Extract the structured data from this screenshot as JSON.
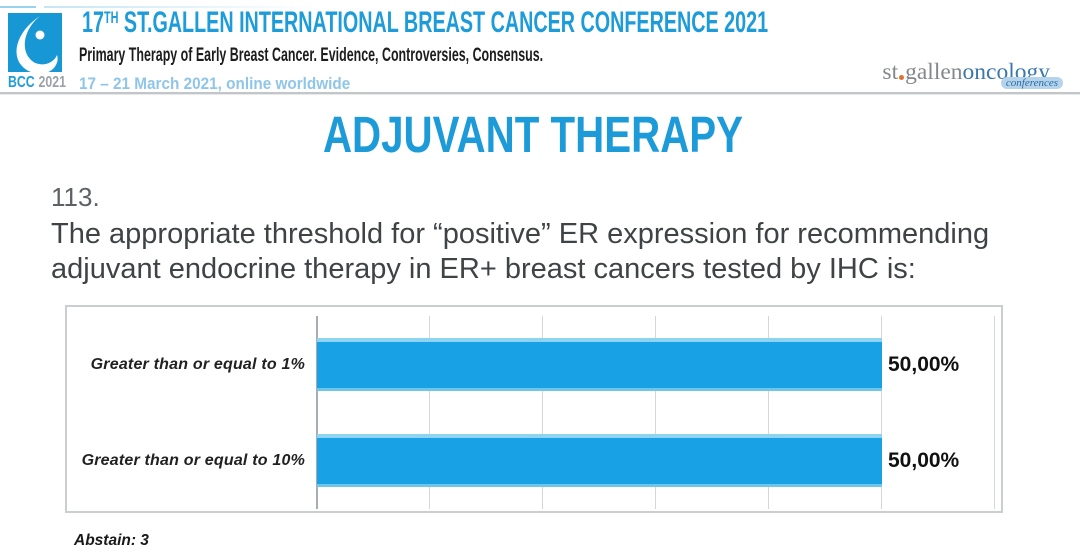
{
  "header": {
    "conference_title": {
      "prefix": "17",
      "superscript": "TH",
      "rest": " ST.GALLEN INTERNATIONAL BREAST CANCER CONFERENCE 2021"
    },
    "subtitle": "Primary Therapy of Early Breast Cancer. Evidence, Controversies, Consensus.",
    "date_line": "17 – 21 March 2021, online worldwide",
    "badge": {
      "acronym": "BCC",
      "year": "2021"
    },
    "logo_right": {
      "part1": "st",
      "part2": "gallen",
      "part3": "oncology",
      "part4": "conferences"
    }
  },
  "slide": {
    "title": "ADJUVANT THERAPY",
    "question_number": "113.",
    "question_lines": [
      "The appropriate threshold for “positive” ER expression for recommending",
      "adjuvant endocrine therapy in ER+ breast cancers tested by IHC is:"
    ],
    "abstain_note": "Abstain: 3"
  },
  "chart_data": {
    "type": "bar",
    "orientation": "horizontal",
    "categories": [
      "Greater than or equal to 1%",
      "Greater than or equal to 10%"
    ],
    "values": [
      50.0,
      50.0
    ],
    "value_labels": [
      "50,00%",
      "50,00%"
    ],
    "xlim": [
      0,
      60
    ],
    "gridline_step": 10,
    "grid": true,
    "abstain": 3
  },
  "colors": {
    "brand_blue": "#1d9cd9",
    "title_blue": "#1d9bd9",
    "bar_blue": "#18a2e5",
    "date_light_blue": "#8fc6e8",
    "logo_orange": "#e0732c",
    "logo_steel_blue": "#3a77ad"
  }
}
